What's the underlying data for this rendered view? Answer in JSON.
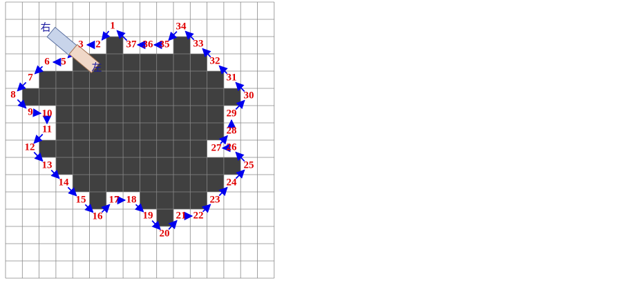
{
  "robot": {
    "right_label": "右",
    "left_label": "左"
  },
  "nodes": [
    {
      "label": "1"
    },
    {
      "label": "2"
    },
    {
      "label": "3"
    },
    {
      "label": "5"
    },
    {
      "label": "6"
    },
    {
      "label": "7"
    },
    {
      "label": "8"
    },
    {
      "label": "9"
    },
    {
      "label": "10"
    },
    {
      "label": "11"
    },
    {
      "label": "12"
    },
    {
      "label": "13"
    },
    {
      "label": "14"
    },
    {
      "label": "15"
    },
    {
      "label": "16"
    },
    {
      "label": "17"
    },
    {
      "label": "18"
    },
    {
      "label": "19"
    },
    {
      "label": "20"
    },
    {
      "label": "21"
    },
    {
      "label": "22"
    },
    {
      "label": "23"
    },
    {
      "label": "24"
    },
    {
      "label": "25"
    },
    {
      "label": "26"
    },
    {
      "label": "27"
    },
    {
      "label": "28"
    },
    {
      "label": "29"
    },
    {
      "label": "30"
    },
    {
      "label": "31"
    },
    {
      "label": "32"
    },
    {
      "label": "33"
    },
    {
      "label": "34"
    },
    {
      "label": "35"
    },
    {
      "label": "36"
    },
    {
      "label": "37"
    }
  ]
}
